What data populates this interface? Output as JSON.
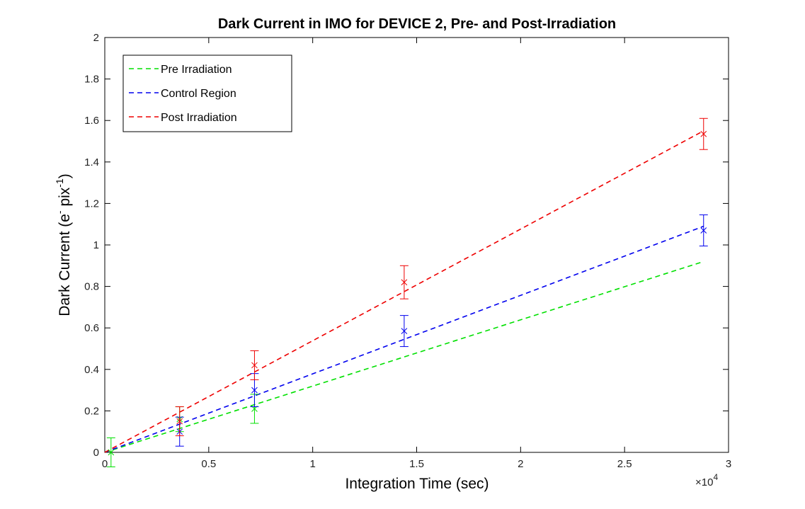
{
  "chart_data": {
    "type": "scatter",
    "title": "Dark Current in IMO for DEVICE 2, Pre- and Post-Irradiation",
    "xlabel": "Integration Time (sec)",
    "ylabel_main": "Dark Current (e",
    "ylabel_sup1": "-",
    "ylabel_mid": " pix",
    "ylabel_sup2": "-1",
    "ylabel_end": ")",
    "x_multiplier_prefix": "×10",
    "x_multiplier_exp": "4",
    "xlim": [
      0,
      30000
    ],
    "ylim": [
      0,
      2
    ],
    "x_ticks": [
      0,
      5000,
      10000,
      15000,
      20000,
      25000,
      30000
    ],
    "x_tick_labels": [
      "0",
      "0.5",
      "1",
      "1.5",
      "2",
      "2.5",
      "3"
    ],
    "y_ticks": [
      0,
      0.2,
      0.4,
      0.6,
      0.8,
      1,
      1.2,
      1.4,
      1.6,
      1.8,
      2
    ],
    "y_tick_labels": [
      "0",
      "0.2",
      "0.4",
      "0.6",
      "0.8",
      "1",
      "1.2",
      "1.4",
      "1.6",
      "1.8",
      "2"
    ],
    "grid": false,
    "legend_position": "top-left",
    "series": [
      {
        "name": "Pre Irradiation",
        "color": "#00e000",
        "fit_x": [
          0,
          28800
        ],
        "fit_y": [
          0,
          0.92
        ],
        "points": [
          {
            "x": 300,
            "y": 0.0,
            "err": 0.07
          },
          {
            "x": 3600,
            "y": 0.16,
            "err": 0.06
          },
          {
            "x": 7200,
            "y": 0.21,
            "err": 0.07
          }
        ]
      },
      {
        "name": "Control Region",
        "color": "#0000ee",
        "fit_x": [
          0,
          28800
        ],
        "fit_y": [
          0,
          1.09
        ],
        "points": [
          {
            "x": 3600,
            "y": 0.1,
            "err": 0.07
          },
          {
            "x": 7200,
            "y": 0.3,
            "err": 0.08
          },
          {
            "x": 14400,
            "y": 0.585,
            "err": 0.075
          },
          {
            "x": 28800,
            "y": 1.07,
            "err": 0.075
          }
        ]
      },
      {
        "name": "Post Irradiation",
        "color": "#ee0000",
        "fit_x": [
          0,
          28800
        ],
        "fit_y": [
          0,
          1.55
        ],
        "points": [
          {
            "x": 3600,
            "y": 0.15,
            "err": 0.07
          },
          {
            "x": 7200,
            "y": 0.42,
            "err": 0.07
          },
          {
            "x": 14400,
            "y": 0.82,
            "err": 0.08
          },
          {
            "x": 28800,
            "y": 1.535,
            "err": 0.075
          }
        ]
      }
    ]
  }
}
